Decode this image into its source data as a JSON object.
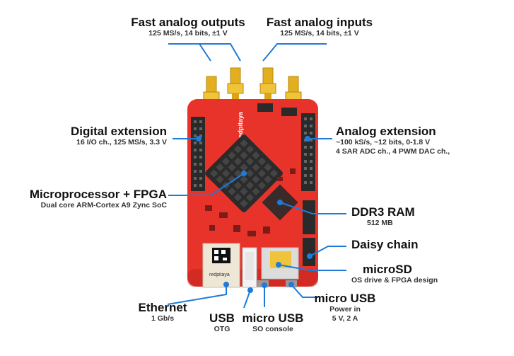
{
  "labels": {
    "fast_analog_outputs": {
      "title": "Fast analog outputs",
      "sub": "125 MS/s, 14 bits, ±1 V"
    },
    "fast_analog_inputs": {
      "title": "Fast analog inputs",
      "sub": "125 MS/s, 14 bits, ±1 V"
    },
    "digital_extension": {
      "title": "Digital extension",
      "sub": "16 I/O ch., 125 MS/s, 3.3 V"
    },
    "analog_extension": {
      "title": "Analog extension",
      "sub1": "~100 kS/s, ~12 bits, 0-1.8 V",
      "sub2": "4 SAR ADC ch., 4 PWM DAC ch.,"
    },
    "microprocessor": {
      "title": "Microprocessor + FPGA",
      "sub": "Dual core ARM-Cortex A9 Zync SoC"
    },
    "ddr3": {
      "title": "DDR3 RAM",
      "sub": "512 MB"
    },
    "daisy_chain": {
      "title": "Daisy chain"
    },
    "microsd": {
      "title": "microSD",
      "sub": "OS drive & FPGA design"
    },
    "ethernet": {
      "title": "Ethernet",
      "sub": "1 Gb/s"
    },
    "usb": {
      "title": "USB",
      "sub": "OTG"
    },
    "micro_usb_console": {
      "title": "micro USB",
      "sub": "SO console"
    },
    "micro_usb_power": {
      "title": "micro USB",
      "sub1": "Power in",
      "sub2": "5 V, 2 A"
    }
  },
  "board": {
    "brand_text": "redpitaya",
    "sticker_text": "redpitaya"
  },
  "colors": {
    "board": "#e8332a",
    "board_dark": "#c42720",
    "leader": "#1f7bd9",
    "connector": "#e2b01e",
    "header": "#2a2a2a",
    "heatsink": "#2b2b2b"
  }
}
